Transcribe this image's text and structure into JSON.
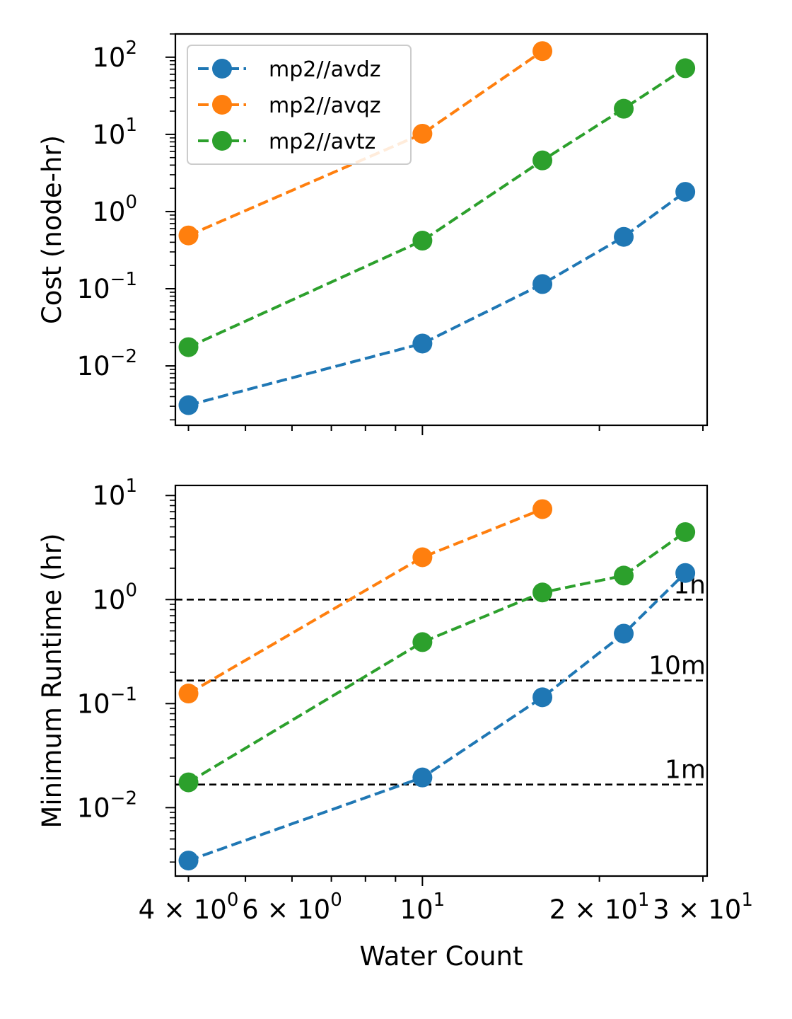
{
  "chart_data": [
    {
      "type": "line",
      "xscale": "log",
      "yscale": "log",
      "xlim": [
        3.8,
        30.5
      ],
      "ylim": [
        0.0017,
        200
      ],
      "xlabel": "",
      "ylabel": "Cost (node-hr)",
      "x_tick_labels_shown": false,
      "y_ticks": [
        {
          "value": 0.01,
          "base": "10",
          "exp": "−2"
        },
        {
          "value": 0.1,
          "base": "10",
          "exp": "−1"
        },
        {
          "value": 1,
          "base": "10",
          "exp": "0"
        },
        {
          "value": 10,
          "base": "10",
          "exp": "1"
        },
        {
          "value": 100,
          "base": "10",
          "exp": "2"
        }
      ],
      "legend": {
        "position": "top-left",
        "entries": [
          "mp2//avdz",
          "mp2//avqz",
          "mp2//avtz"
        ]
      },
      "series": [
        {
          "name": "mp2//avdz",
          "color": "#1f77b4",
          "x": [
            4,
            10,
            16,
            22,
            28
          ],
          "y": [
            0.0031,
            0.0195,
            0.115,
            0.47,
            1.8
          ]
        },
        {
          "name": "mp2//avqz",
          "color": "#ff7f0e",
          "x": [
            4,
            10,
            16
          ],
          "y": [
            0.49,
            10.2,
            120
          ]
        },
        {
          "name": "mp2//avtz",
          "color": "#2ca02c",
          "x": [
            4,
            10,
            16,
            22,
            28
          ],
          "y": [
            0.0175,
            0.42,
            4.6,
            21.5,
            72
          ]
        }
      ]
    },
    {
      "type": "line",
      "xscale": "log",
      "yscale": "log",
      "xlim": [
        3.8,
        30.5
      ],
      "ylim": [
        0.0022,
        12.5
      ],
      "xlabel": "Water Count",
      "ylabel": "Minimum Runtime (hr)",
      "x_ticks": [
        {
          "value": 4,
          "mant": "4 × 10",
          "exp": "0"
        },
        {
          "value": 6,
          "mant": "6 × 10",
          "exp": "0"
        },
        {
          "value": 10,
          "mant": "10",
          "exp": "1"
        },
        {
          "value": 20,
          "mant": "2 × 10",
          "exp": "1"
        },
        {
          "value": 30,
          "mant": "3 × 10",
          "exp": "1"
        }
      ],
      "y_ticks": [
        {
          "value": 0.01,
          "base": "10",
          "exp": "−2"
        },
        {
          "value": 0.1,
          "base": "10",
          "exp": "−1"
        },
        {
          "value": 1,
          "base": "10",
          "exp": "0"
        },
        {
          "value": 10,
          "base": "10",
          "exp": "1"
        }
      ],
      "reference_lines": [
        {
          "y": 1.0,
          "label": "1h"
        },
        {
          "y": 0.1667,
          "label": "10m"
        },
        {
          "y": 0.01667,
          "label": "1m"
        }
      ],
      "series": [
        {
          "name": "mp2//avdz",
          "color": "#1f77b4",
          "x": [
            4,
            10,
            16,
            22,
            28
          ],
          "y": [
            0.0031,
            0.0195,
            0.115,
            0.47,
            1.8
          ]
        },
        {
          "name": "mp2//avqz",
          "color": "#ff7f0e",
          "x": [
            4,
            10,
            16
          ],
          "y": [
            0.125,
            2.55,
            7.4
          ]
        },
        {
          "name": "mp2//avtz",
          "color": "#2ca02c",
          "x": [
            4,
            10,
            16,
            22,
            28
          ],
          "y": [
            0.0175,
            0.39,
            1.17,
            1.7,
            4.45
          ]
        }
      ]
    }
  ]
}
